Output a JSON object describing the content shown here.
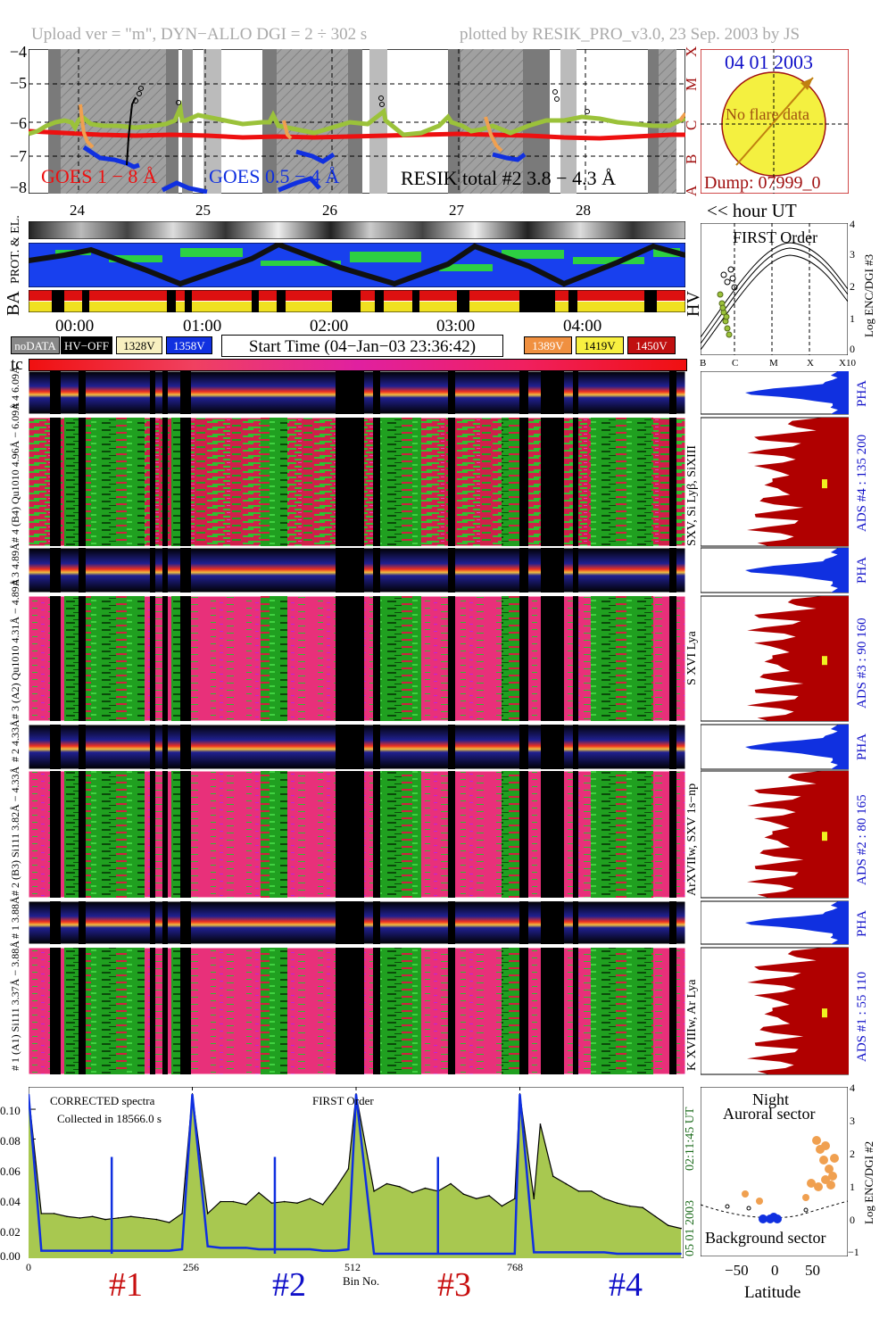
{
  "header": {
    "left": "Upload ver = \"m\", DYN−ALLO DGI =   2 ÷ 302 s",
    "right": "plotted by RESIK_PRO_v3.0, 23 Sep. 2003 by JS"
  },
  "goes": {
    "yticks": [
      "−4",
      "−5",
      "−6",
      "−7",
      "−8"
    ],
    "legend_goes1": "GOES 1 − 8 Å",
    "legend_goes05": "GOES 0.5 − 4 Å",
    "legend_resik": "RESIK total #2  3.8 − 4.3 Å",
    "flare_classes": [
      "X",
      "M",
      "C",
      "B",
      "A"
    ]
  },
  "sun_panel": {
    "date": "04 01 2003",
    "message": "No flare data",
    "dump": "Dump: 07999_0"
  },
  "hour_ticks": [
    "24",
    "25",
    "26",
    "27",
    "28"
  ],
  "hour_ut_label": "<< hour UT",
  "orbit_labels": {
    "prot_el": "PROT. & EL.",
    "ba": "BA",
    "hv": "HV",
    "tc": "tc"
  },
  "time_ticks": [
    "00:00",
    "01:00",
    "02:00",
    "03:00",
    "04:00"
  ],
  "status_chips": {
    "nodata": "noDATA",
    "hvoff": "HV−OFF",
    "v1328": "1328V",
    "v1358": "1358V",
    "start_time": "Start Time (04−Jan−03 23:36:42)",
    "v1389": "1389V",
    "v1419": "1419V",
    "v1450": "1450V"
  },
  "first_order_panel": {
    "title": "FIRST Order",
    "ylabel": "Log ENC/DGI #3",
    "yticks": [
      "4",
      "3",
      "2",
      "1",
      "0"
    ],
    "xticks": [
      "B",
      "C",
      "M",
      "X",
      "X10"
    ]
  },
  "channels": [
    {
      "pha_label": "# 4 6.09Å",
      "label": "# 4 (B4) Qu1010 4.96Å − 6.09Å",
      "lines": "SXV, Si Lyβ, SiXIII",
      "ads": "ADS #4 :  135 200"
    },
    {
      "pha_label": "# 3 4.89Å",
      "label": "# 3 (A2) Qu1010 4.31Å − 4.89Å",
      "lines": "S XVI Lya",
      "ads": "ADS #3 :  90 160"
    },
    {
      "pha_label": "# 2 4.33Å",
      "label": "# 2 (B3) Si111 3.82Å − 4.33Å",
      "lines": "ArXVIIw, SXV 1s−np",
      "ads": "ADS #2 :  80 165"
    },
    {
      "pha_label": "# 1 3.88Å",
      "label": "# 1 (A1) Si111 3.37Å − 3.88Å",
      "lines": "K XVIIIw, Ar Lya",
      "ads": "ADS #1 :  55 110"
    }
  ],
  "pha_text": "PHA",
  "spectrum_panel": {
    "note1": "CORRECTED spectra",
    "note2": "Collected in 18566.0 s",
    "note3": "FIRST Order",
    "time": "02:11:45 UT",
    "date": "05 01 2003",
    "xlabel": "Bin No.",
    "xticks": [
      "0",
      "256",
      "512",
      "768"
    ],
    "yticks": [
      "0.10",
      "0.08",
      "0.06",
      "0.04",
      "0.02",
      "0.00"
    ],
    "groups": [
      "#1",
      "#2",
      "#3",
      "#4"
    ]
  },
  "latitude_panel": {
    "title1": "Night",
    "title2": "Auroral sector",
    "bottom": "Background sector",
    "xlabel": "Latitude",
    "ylabel": "Log ENC/DGI #2",
    "xticks": [
      "−50",
      "0",
      "50"
    ],
    "yticks": [
      "4",
      "3",
      "2",
      "1",
      "0",
      "−1"
    ]
  },
  "chart_data": {
    "type": "line",
    "title": "",
    "xlabel": "Bin No.",
    "ylabel": "",
    "xlim": [
      0,
      1024
    ],
    "ylim": [
      0,
      0.115
    ],
    "series": [
      {
        "x": [
          0,
          20,
          40,
          60,
          80,
          100,
          120,
          140,
          160,
          180,
          200,
          220,
          240,
          256,
          280,
          300,
          320,
          340,
          360,
          380,
          400,
          420,
          440,
          460,
          480,
          500,
          512,
          540,
          560,
          580,
          600,
          620,
          640,
          660,
          680,
          700,
          720,
          740,
          760,
          768,
          790,
          800,
          820,
          840,
          860,
          880,
          900,
          920,
          940,
          960,
          980,
          1000,
          1020
        ],
        "values": [
          0.11,
          0.03,
          0.03,
          0.028,
          0.027,
          0.028,
          0.026,
          0.027,
          0.028,
          0.027,
          0.026,
          0.024,
          0.03,
          0.11,
          0.03,
          0.038,
          0.038,
          0.036,
          0.044,
          0.037,
          0.038,
          0.037,
          0.04,
          0.036,
          0.047,
          0.06,
          0.11,
          0.045,
          0.05,
          0.048,
          0.044,
          0.047,
          0.045,
          0.05,
          0.043,
          0.04,
          0.042,
          0.035,
          0.04,
          0.11,
          0.04,
          0.09,
          0.055,
          0.05,
          0.045,
          0.045,
          0.04,
          0.037,
          0.035,
          0.034,
          0.028,
          0.022,
          0.02
        ]
      },
      {
        "x": [
          0,
          20,
          40,
          60,
          80,
          100,
          120,
          140,
          160,
          180,
          200,
          220,
          240,
          256,
          280,
          300,
          320,
          340,
          360,
          380,
          400,
          420,
          440,
          460,
          480,
          500,
          512,
          540,
          560,
          580,
          600,
          620,
          640,
          660,
          680,
          700,
          720,
          740,
          760,
          768,
          790,
          800,
          820,
          840,
          860,
          880,
          900,
          920,
          940,
          960,
          980,
          1000,
          1020
        ],
        "values": [
          0.11,
          0.005,
          0.005,
          0.005,
          0.005,
          0.005,
          0.005,
          0.005,
          0.005,
          0.005,
          0.005,
          0.005,
          0.006,
          0.11,
          0.008,
          0.007,
          0.007,
          0.007,
          0.006,
          0.006,
          0.006,
          0.006,
          0.006,
          0.005,
          0.005,
          0.006,
          0.11,
          0.003,
          0.003,
          0.003,
          0.003,
          0.003,
          0.003,
          0.003,
          0.003,
          0.003,
          0.003,
          0.003,
          0.003,
          0.11,
          0.004,
          0.004,
          0.004,
          0.004,
          0.004,
          0.004,
          0.004,
          0.003,
          0.003,
          0.003,
          0.003,
          0.003,
          0.003
        ]
      }
    ]
  }
}
